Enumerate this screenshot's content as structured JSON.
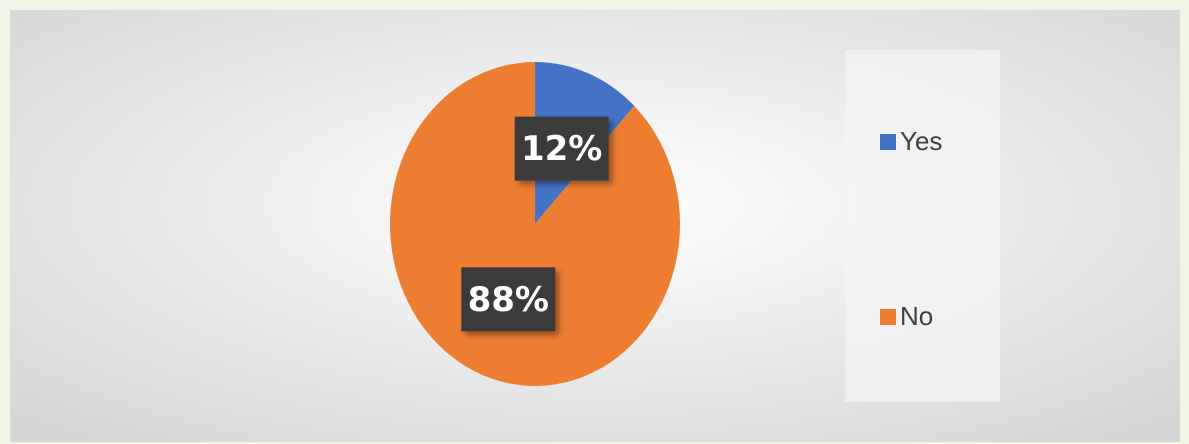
{
  "chart_data": {
    "type": "pie",
    "categories": [
      "Yes",
      "No"
    ],
    "values": [
      12,
      88
    ],
    "value_labels": [
      "12%",
      "88%"
    ],
    "colors": [
      "#4472c4",
      "#ed7d31"
    ],
    "legend": "right"
  }
}
